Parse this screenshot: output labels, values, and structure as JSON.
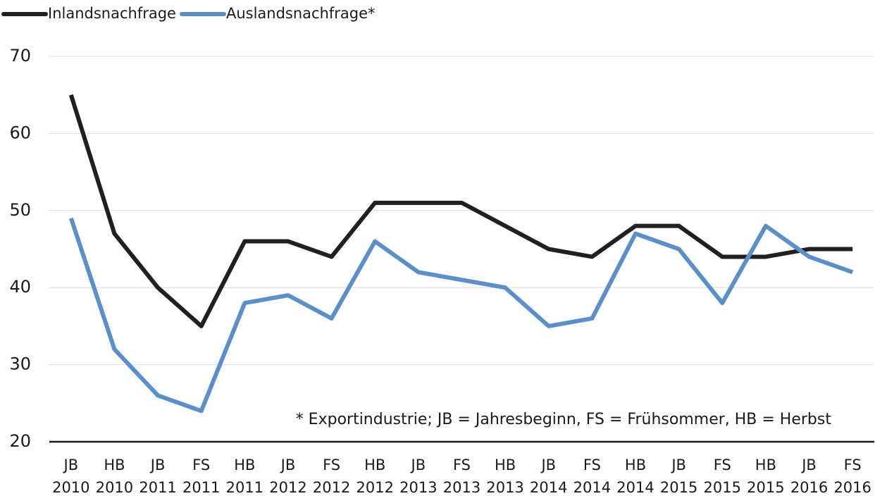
{
  "chart_data": {
    "type": "line",
    "categories": [
      "JB 2010",
      "HB 2010",
      "JB 2011",
      "FS 2011",
      "HB 2011",
      "JB 2012",
      "FS 2012",
      "HB 2012",
      "JB 2013",
      "FS 2013",
      "HB 2013",
      "JB 2014",
      "FS 2014",
      "HB 2014",
      "JB 2015",
      "FS 2015",
      "HB 2015",
      "JB 2016",
      "FS 2016"
    ],
    "series": [
      {
        "name": "Inlandsnachfrage",
        "color": "#231f20",
        "values": [
          65,
          47,
          40,
          35,
          46,
          46,
          44,
          51,
          51,
          51,
          48,
          45,
          44,
          48,
          48,
          44,
          44,
          45,
          45
        ]
      },
      {
        "name": "Auslandsnachfrage*",
        "color": "#5b8fcc",
        "values": [
          49,
          32,
          26,
          24,
          38,
          39,
          36,
          46,
          42,
          41,
          40,
          35,
          36,
          47,
          45,
          38,
          48,
          44,
          42
        ]
      }
    ],
    "ylim": [
      20,
      70
    ],
    "yticks": [
      20,
      30,
      40,
      50,
      60,
      70
    ],
    "grid": true,
    "annotation": "* Exportindustrie; JB = Jahresbeginn, FS = Frühsommer, HB = Herbst"
  }
}
